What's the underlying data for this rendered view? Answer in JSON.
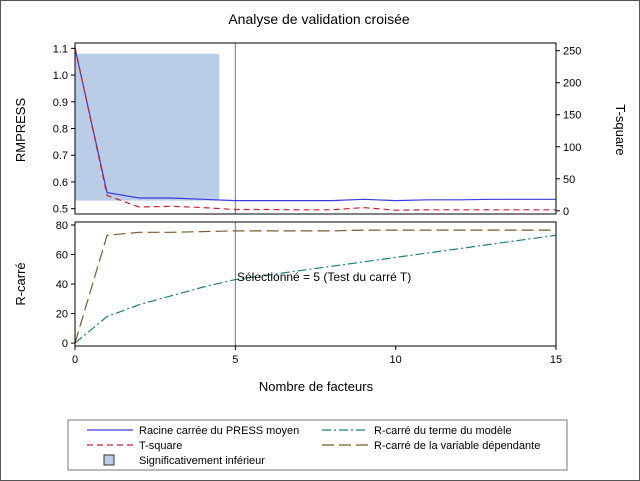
{
  "chart_data": [
    {
      "panel": "top",
      "type": "line",
      "title": "Analyse de validation croisée",
      "xlabel": "Nombre de facteurs",
      "ylabel_left": "RMPRESS",
      "ylabel_right": "T-square",
      "xlim": [
        0,
        15
      ],
      "ylim_left": [
        0.48,
        1.12
      ],
      "ylim_right": [
        -5,
        262
      ],
      "xticks": [
        "0",
        "5",
        "10",
        "15"
      ],
      "yticks_left": [
        "0.5",
        "0.6",
        "0.7",
        "0.8",
        "0.9",
        "1.0",
        "1.1"
      ],
      "yticks_right": [
        "0",
        "50",
        "100",
        "150",
        "200",
        "250"
      ],
      "shaded_region": {
        "x": [
          0,
          4.5
        ],
        "y": [
          0.53,
          1.08
        ],
        "color": "#b9cde6",
        "label": "Significativement inférieur"
      },
      "vertical_line_x": 5,
      "series": [
        {
          "name": "Racine carrée du PRESS moyen",
          "axis": "left",
          "color": "#3a3adf",
          "dash": "",
          "x": [
            0,
            1,
            2,
            3,
            4,
            5,
            6,
            7,
            8,
            9,
            10,
            11,
            12,
            13,
            14,
            15
          ],
          "y": [
            1.1,
            0.56,
            0.54,
            0.54,
            0.535,
            0.53,
            0.53,
            0.53,
            0.53,
            0.535,
            0.53,
            0.533,
            0.533,
            0.535,
            0.535,
            0.535
          ]
        },
        {
          "name": "T-square",
          "axis": "right",
          "color": "#c8202f",
          "dash": "6,4",
          "x": [
            0,
            1,
            2,
            3,
            4,
            5,
            6,
            7,
            8,
            9,
            10,
            11,
            12,
            13,
            14,
            15
          ],
          "y": [
            255,
            24,
            6,
            7,
            5,
            2,
            2,
            1.5,
            1.5,
            5,
            1,
            1.5,
            1.5,
            1.5,
            1.5,
            1.5
          ]
        }
      ]
    },
    {
      "panel": "bottom",
      "type": "line",
      "ylabel": "R-carré",
      "xlim": [
        0,
        15
      ],
      "ylim": [
        -2,
        82
      ],
      "xticks": [
        "0",
        "5",
        "10",
        "15"
      ],
      "yticks": [
        "0",
        "20",
        "40",
        "60",
        "80"
      ],
      "vertical_line_x": 5,
      "annotation": "Sélectionné = 5 (Test du carré T)",
      "series": [
        {
          "name": "R-carré du terme du modèle",
          "color": "#1f7f7f",
          "dash": "9,3,2,3",
          "x": [
            0,
            1,
            2,
            3,
            4,
            5,
            6,
            7,
            8,
            9,
            10,
            11,
            12,
            13,
            14,
            15
          ],
          "y": [
            0,
            18,
            26,
            32,
            38,
            43,
            46,
            49,
            52,
            55,
            58,
            61,
            64,
            67,
            70,
            73
          ]
        },
        {
          "name": "R-carré de la variable dépendante",
          "color": "#7a5c2e",
          "dash": "12,5",
          "x": [
            0,
            1,
            2,
            3,
            4,
            5,
            6,
            7,
            8,
            9,
            10,
            11,
            12,
            13,
            14,
            15
          ],
          "y": [
            0,
            73,
            75,
            75,
            75.5,
            76,
            76,
            76,
            76,
            76.5,
            76.5,
            76.5,
            76.5,
            76.5,
            76.5,
            76.5
          ]
        }
      ]
    }
  ],
  "legend": [
    {
      "label": "Racine carrée du PRESS moyen",
      "kind": "line",
      "color": "#3a3adf",
      "dash": ""
    },
    {
      "label": "R-carré du terme du modèle",
      "kind": "line",
      "color": "#1f7f7f",
      "dash": "9,3,2,3"
    },
    {
      "label": "T-square",
      "kind": "line",
      "color": "#c8202f",
      "dash": "6,4"
    },
    {
      "label": "R-carré de la variable dépendante",
      "kind": "line",
      "color": "#7a5c2e",
      "dash": "12,5"
    },
    {
      "label": "Significativement inférieur",
      "kind": "box",
      "color": "#b9cde6"
    }
  ]
}
